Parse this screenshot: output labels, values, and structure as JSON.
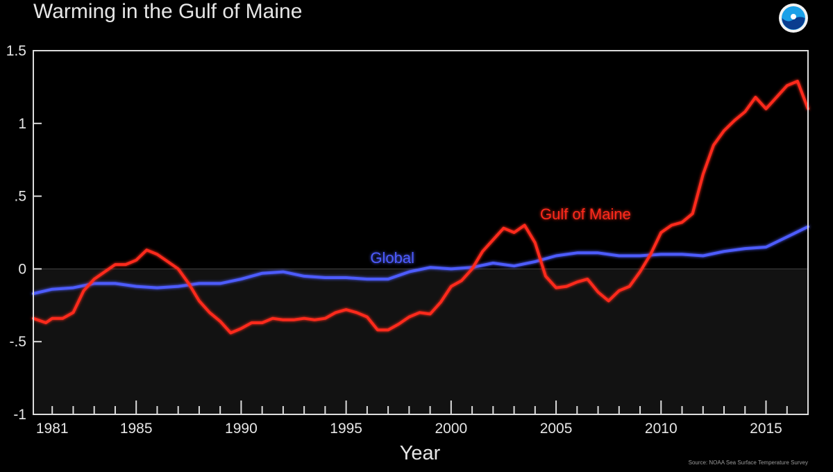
{
  "header": {
    "title": "Warming in the Gulf of Maine",
    "source": "Source: NOAA Sea Surface Temperature Survey"
  },
  "colors": {
    "background": "#000000",
    "gulf": "#ff2a1a",
    "global": "#4d5cff",
    "axis": "#dddddd",
    "below_zero_fill": "#121212"
  },
  "chart_data": {
    "type": "line",
    "title": "Warming in the Gulf of Maine",
    "xlabel": "Year",
    "ylabel": "",
    "xlim": [
      1980.1,
      2017.0
    ],
    "ylim": [
      -1,
      1.5
    ],
    "xticks": [
      1981,
      1985,
      1990,
      1995,
      2000,
      2005,
      2010,
      2015
    ],
    "yticks": [
      {
        "value": 1.5,
        "label": "1.5"
      },
      {
        "value": 1,
        "label": "1"
      },
      {
        "value": 0.5,
        "label": ".5"
      },
      {
        "value": 0,
        "label": "0"
      },
      {
        "value": -0.5,
        "label": "-.5"
      },
      {
        "value": -1,
        "label": "-1"
      }
    ],
    "grid": false,
    "legend": "inline labels",
    "series": [
      {
        "name": "Gulf of Maine",
        "x": [
          1980.1,
          1980.7,
          1981.0,
          1981.5,
          1982.0,
          1982.5,
          1983.0,
          1983.5,
          1984.0,
          1984.5,
          1985.0,
          1985.5,
          1986.0,
          1986.5,
          1987.0,
          1987.5,
          1988.0,
          1988.5,
          1989.0,
          1989.5,
          1990.0,
          1990.5,
          1991.0,
          1991.5,
          1992.0,
          1992.5,
          1993.0,
          1993.5,
          1994.0,
          1994.5,
          1995.0,
          1995.5,
          1996.0,
          1996.5,
          1997.0,
          1997.5,
          1998.0,
          1998.5,
          1999.0,
          1999.5,
          2000.0,
          2000.5,
          2001.0,
          2001.5,
          2002.0,
          2002.5,
          2003.0,
          2003.5,
          2004.0,
          2004.5,
          2005.0,
          2005.5,
          2006.0,
          2006.5,
          2007.0,
          2007.5,
          2008.0,
          2008.5,
          2009.0,
          2009.5,
          2010.0,
          2010.5,
          2011.0,
          2011.5,
          2012.0,
          2012.5,
          2013.0,
          2013.5,
          2014.0,
          2014.5,
          2015.0,
          2015.5,
          2016.0,
          2016.5,
          2017.0
        ],
        "y": [
          -0.34,
          -0.37,
          -0.34,
          -0.34,
          -0.3,
          -0.15,
          -0.07,
          -0.02,
          0.03,
          0.03,
          0.06,
          0.13,
          0.1,
          0.05,
          0.0,
          -0.1,
          -0.22,
          -0.3,
          -0.36,
          -0.44,
          -0.41,
          -0.37,
          -0.37,
          -0.34,
          -0.35,
          -0.35,
          -0.34,
          -0.35,
          -0.34,
          -0.3,
          -0.28,
          -0.3,
          -0.33,
          -0.42,
          -0.42,
          -0.38,
          -0.33,
          -0.3,
          -0.31,
          -0.23,
          -0.12,
          -0.08,
          0.0,
          0.12,
          0.2,
          0.28,
          0.25,
          0.3,
          0.18,
          -0.05,
          -0.13,
          -0.12,
          -0.09,
          -0.07,
          -0.16,
          -0.22,
          -0.15,
          -0.12,
          -0.02,
          0.1,
          0.25,
          0.3,
          0.32,
          0.38,
          0.65,
          0.85,
          0.95,
          1.02,
          1.08,
          1.18,
          1.1,
          1.18,
          1.26,
          1.29,
          1.1
        ]
      },
      {
        "name": "Global",
        "x": [
          1980.1,
          1981.0,
          1982.0,
          1983.0,
          1984.0,
          1985.0,
          1986.0,
          1987.0,
          1988.0,
          1989.0,
          1990.0,
          1991.0,
          1992.0,
          1993.0,
          1994.0,
          1995.0,
          1996.0,
          1997.0,
          1998.0,
          1999.0,
          2000.0,
          2001.0,
          2002.0,
          2003.0,
          2004.0,
          2005.0,
          2006.0,
          2007.0,
          2008.0,
          2009.0,
          2010.0,
          2011.0,
          2012.0,
          2013.0,
          2014.0,
          2015.0,
          2016.0,
          2017.0
        ],
        "y": [
          -0.17,
          -0.14,
          -0.13,
          -0.1,
          -0.1,
          -0.12,
          -0.13,
          -0.12,
          -0.1,
          -0.1,
          -0.07,
          -0.03,
          -0.02,
          -0.05,
          -0.06,
          -0.06,
          -0.07,
          -0.07,
          -0.02,
          0.01,
          0.0,
          0.01,
          0.04,
          0.02,
          0.05,
          0.09,
          0.11,
          0.11,
          0.09,
          0.09,
          0.1,
          0.1,
          0.09,
          0.12,
          0.14,
          0.15,
          0.22,
          0.29
        ]
      }
    ],
    "annotations": [
      {
        "text": "Gulf of Maine",
        "x": 2006.4,
        "y": 0.34,
        "color": "#ff2a1a"
      },
      {
        "text": "Global",
        "x": 1997.2,
        "y": 0.04,
        "color": "#4d5cff"
      }
    ]
  }
}
